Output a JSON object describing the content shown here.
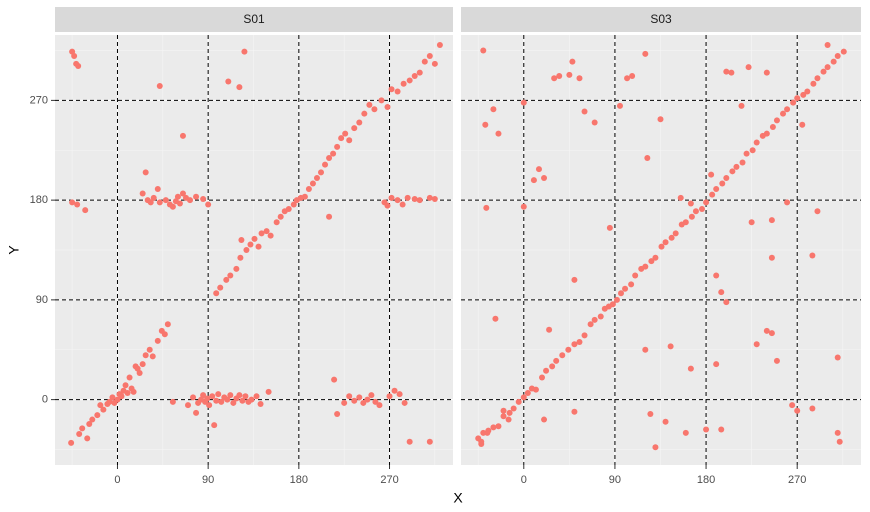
{
  "chart_data": [
    {
      "type": "scatter",
      "title": "S01",
      "xlabel": "X",
      "ylabel": "Y",
      "color": "#f8766d",
      "grid": true,
      "ytick_labels": true,
      "xlim": [
        -62,
        333
      ],
      "ylim": [
        -59,
        329
      ],
      "xticks": [
        0,
        90,
        180,
        270
      ],
      "yticks": [
        0,
        90,
        180,
        270
      ],
      "vlines": [
        0,
        90,
        180,
        270
      ],
      "hlines": [
        0,
        90,
        180,
        270
      ],
      "x": [
        -45,
        -43,
        -41,
        -39,
        -45,
        -40,
        -32,
        -46,
        -38,
        -35,
        -30,
        -28,
        -25,
        -20,
        -17,
        -14,
        -10,
        -8,
        -5,
        -3,
        0,
        2,
        4,
        6,
        8,
        10,
        12,
        14,
        16,
        18,
        20,
        22,
        25,
        28,
        32,
        35,
        40,
        44,
        47,
        50,
        55,
        70,
        75,
        78,
        80,
        83,
        85,
        87,
        89,
        91,
        94,
        96,
        98,
        100,
        103,
        106,
        109,
        112,
        115,
        118,
        121,
        124,
        127,
        130,
        133,
        138,
        142,
        150,
        215,
        218,
        225,
        230,
        235,
        240,
        244,
        248,
        252,
        256,
        260,
        270,
        275,
        280,
        285,
        290,
        310,
        25,
        28,
        30,
        33,
        36,
        40,
        42,
        48,
        52,
        55,
        58,
        60,
        62,
        65,
        68,
        72,
        78,
        85,
        90,
        265,
        268,
        272,
        278,
        283,
        288,
        295,
        300,
        310,
        315,
        42,
        110,
        121,
        126,
        65,
        123,
        210,
        98,
        102,
        108,
        112,
        118,
        122,
        128,
        132,
        136,
        140,
        143,
        148,
        152,
        158,
        162,
        166,
        170,
        175,
        178,
        182,
        186,
        190,
        194,
        198,
        202,
        206,
        210,
        214,
        218,
        222,
        226,
        230,
        235,
        240,
        245,
        250,
        255,
        262,
        268,
        272,
        278,
        284,
        290,
        295,
        300,
        305,
        310,
        315,
        320
      ],
      "y": [
        314,
        310,
        303,
        301,
        178,
        176,
        171,
        -39,
        -31,
        -26,
        -35,
        -22,
        -18,
        -14,
        -5,
        -9,
        -4,
        -2,
        2,
        -3,
        0,
        5,
        3,
        8,
        13,
        6,
        20,
        10,
        7,
        30,
        28,
        24,
        32,
        40,
        45,
        39,
        53,
        62,
        59,
        68,
        -2,
        -5,
        2,
        -12,
        -3,
        0,
        4,
        -2,
        1,
        -5,
        3,
        -23,
        -1,
        5,
        -2,
        2,
        0,
        4,
        -3,
        1,
        4,
        -1,
        3,
        -2,
        0,
        3,
        -4,
        7,
        18,
        -13,
        -3,
        3,
        -1,
        2,
        -3,
        0,
        4,
        -2,
        -5,
        3,
        8,
        5,
        -3,
        -38,
        -38,
        186,
        205,
        180,
        178,
        182,
        190,
        178,
        180,
        176,
        174,
        179,
        183,
        177,
        186,
        182,
        180,
        183,
        181,
        176,
        178,
        175,
        182,
        180,
        176,
        182,
        181,
        180,
        182,
        181,
        283,
        287,
        282,
        314,
        238,
        144,
        165,
        96,
        101,
        108,
        112,
        118,
        128,
        135,
        140,
        145,
        138,
        150,
        152,
        148,
        160,
        165,
        170,
        172,
        176,
        180,
        182,
        183,
        190,
        195,
        200,
        205,
        212,
        218,
        222,
        228,
        236,
        240,
        234,
        245,
        250,
        258,
        266,
        262,
        270,
        264,
        280,
        278,
        285,
        288,
        292,
        295,
        305,
        310,
        303,
        320
      ]
    },
    {
      "type": "scatter",
      "title": "S03",
      "color": "#f8766d",
      "grid": true,
      "ytick_labels": false,
      "xlim": [
        -62,
        333
      ],
      "ylim": [
        -59,
        329
      ],
      "xticks": [
        0,
        90,
        180,
        270
      ],
      "yticks": [
        0,
        90,
        180,
        270
      ],
      "vlines": [
        0,
        90,
        180,
        270
      ],
      "hlines": [
        0,
        90,
        180,
        270
      ],
      "x": [
        -42,
        -36,
        -30,
        -25,
        -20,
        -14,
        -10,
        -5,
        0,
        4,
        8,
        12,
        18,
        22,
        28,
        32,
        38,
        44,
        50,
        55,
        60,
        66,
        70,
        76,
        80,
        84,
        88,
        92,
        96,
        100,
        106,
        110,
        116,
        120,
        126,
        130,
        136,
        140,
        146,
        150,
        156,
        160,
        166,
        170,
        176,
        180,
        186,
        190,
        196,
        200,
        206,
        210,
        216,
        220,
        226,
        230,
        236,
        240,
        246,
        250,
        256,
        260,
        266,
        270,
        276,
        280,
        286,
        290,
        296,
        300,
        306,
        310,
        316,
        -40,
        -38,
        -30,
        -37,
        -25,
        -28,
        0,
        0,
        10,
        15,
        20,
        30,
        35,
        45,
        48,
        55,
        60,
        70,
        85,
        95,
        102,
        107,
        120,
        122,
        135,
        155,
        165,
        185,
        190,
        195,
        200,
        205,
        215,
        222,
        225,
        240,
        245,
        245,
        260,
        275,
        285,
        290,
        300,
        310,
        310,
        312,
        285,
        265,
        270,
        240,
        245,
        250,
        230,
        180,
        160,
        140,
        130,
        125,
        120,
        145,
        165,
        190,
        200,
        195,
        20,
        25,
        50,
        50,
        -15,
        -20,
        -45,
        -42,
        -35,
        -40
      ],
      "y": [
        -38,
        -30,
        -25,
        -24,
        -15,
        -12,
        -8,
        -2,
        2,
        6,
        10,
        9,
        20,
        26,
        30,
        35,
        40,
        45,
        50,
        52,
        58,
        68,
        72,
        75,
        82,
        84,
        86,
        90,
        96,
        100,
        104,
        112,
        118,
        120,
        125,
        128,
        138,
        142,
        146,
        150,
        158,
        160,
        165,
        170,
        172,
        178,
        185,
        190,
        195,
        200,
        206,
        210,
        214,
        222,
        225,
        232,
        238,
        240,
        246,
        252,
        258,
        262,
        268,
        272,
        275,
        278,
        285,
        290,
        296,
        300,
        305,
        310,
        314,
        315,
        248,
        262,
        173,
        240,
        73,
        268,
        174,
        198,
        208,
        200,
        290,
        292,
        293,
        305,
        290,
        260,
        250,
        155,
        265,
        290,
        292,
        312,
        218,
        253,
        182,
        177,
        203,
        112,
        97,
        296,
        295,
        265,
        300,
        160,
        295,
        162,
        128,
        178,
        248,
        130,
        170,
        320,
        38,
        -30,
        -38,
        -8,
        -5,
        -10,
        62,
        60,
        35,
        50,
        -27,
        -30,
        -20,
        -43,
        -13,
        45,
        48,
        28,
        32,
        88,
        -27,
        -18,
        63,
        -11,
        108,
        -18,
        -10,
        -35,
        -40,
        -28,
        -30
      ]
    }
  ]
}
